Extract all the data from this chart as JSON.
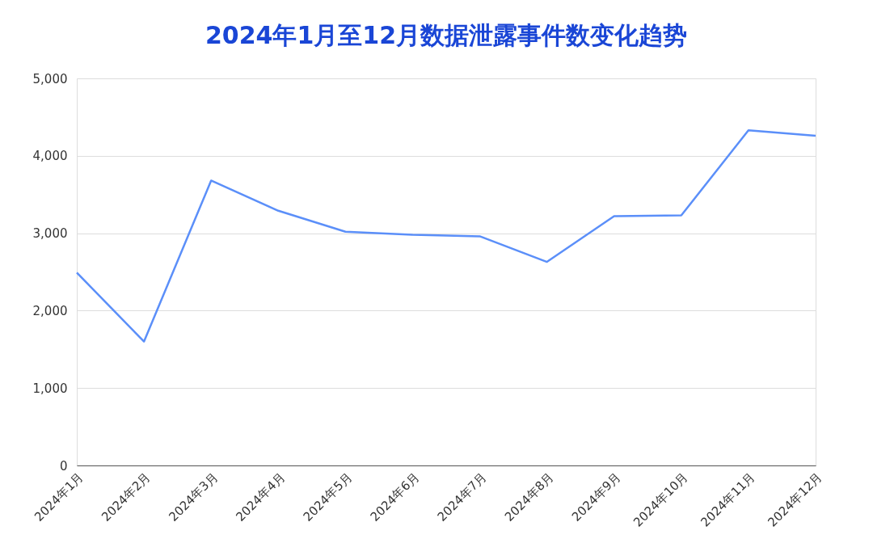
{
  "chart_data": {
    "type": "line",
    "title": "2024年1月至12月数据泄露事件数变化趋势",
    "categories": [
      "2024年1月",
      "2024年2月",
      "2024年3月",
      "2024年4月",
      "2024年5月",
      "2024年6月",
      "2024年7月",
      "2024年8月",
      "2024年9月",
      "2024年10月",
      "2024年11月",
      "2024年12月"
    ],
    "series": [
      {
        "color": "#5b8ff9",
        "values": [
          2490,
          1600,
          3680,
          3290,
          3020,
          2980,
          2960,
          2630,
          3220,
          3230,
          4330,
          4260
        ]
      }
    ],
    "ylim": [
      0,
      5000
    ],
    "yticks": [
      {
        "value": 0,
        "label": "0"
      },
      {
        "value": 1000,
        "label": "1,000"
      },
      {
        "value": 2000,
        "label": "2,000"
      },
      {
        "value": 3000,
        "label": "3,000"
      },
      {
        "value": 4000,
        "label": "4,000"
      },
      {
        "value": 5000,
        "label": "5,000"
      }
    ],
    "grid": "y",
    "marker": "none",
    "line_style": "solid"
  }
}
